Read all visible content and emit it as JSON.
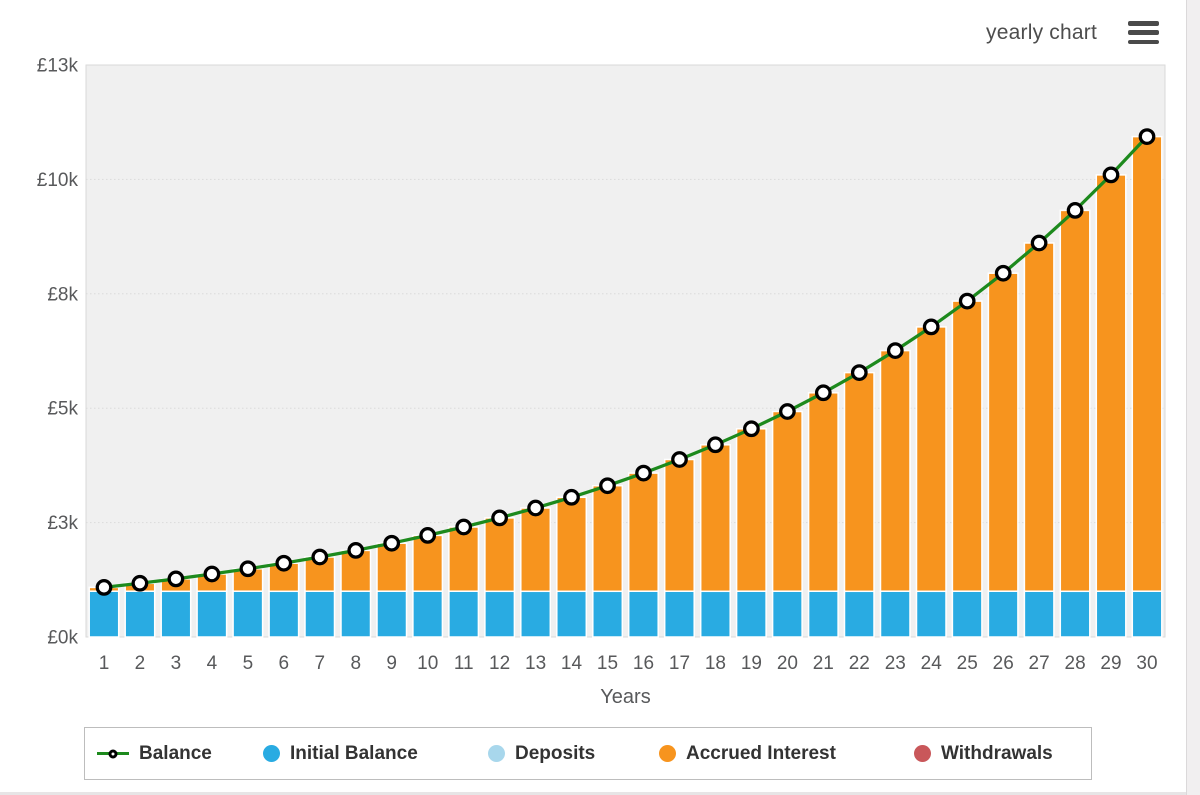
{
  "header": {
    "title": "yearly chart"
  },
  "colors": {
    "plot_bg": "#f0f0f0",
    "grid": "#dadada",
    "plot_border": "#d9d9d9",
    "axis_label": "#58595b",
    "bar_stroke": "#ffffff",
    "balance_line": "#1d8a1d",
    "marker_fill": "#ffffff",
    "marker_stroke": "#000000"
  },
  "chart_data": {
    "type": "bar",
    "subtype": "stacked-columns-with-line-overlay",
    "title": "yearly chart",
    "xlabel": "Years",
    "ylabel": "",
    "ylim": [
      0,
      12500
    ],
    "grid": true,
    "legend_position": "bottom",
    "categories": [
      1,
      2,
      3,
      4,
      5,
      6,
      7,
      8,
      9,
      10,
      11,
      12,
      13,
      14,
      15,
      16,
      17,
      18,
      19,
      20,
      21,
      22,
      23,
      24,
      25,
      26,
      27,
      28,
      29,
      30
    ],
    "y_ticks": [
      {
        "value": 0,
        "label": "£0k"
      },
      {
        "value": 2500,
        "label": "£3k"
      },
      {
        "value": 5000,
        "label": "£5k"
      },
      {
        "value": 7500,
        "label": "£8k"
      },
      {
        "value": 10000,
        "label": "£10k"
      },
      {
        "value": 12500,
        "label": "£13k"
      }
    ],
    "series": [
      {
        "name": "Balance",
        "type": "line",
        "color": "#1d8a1d",
        "marker": "white-circle-black-ring",
        "values": [
          1083.0,
          1172.89,
          1270.24,
          1375.67,
          1489.85,
          1613.5,
          1747.42,
          1892.46,
          2049.53,
          2219.64,
          2403.87,
          2603.39,
          2819.47,
          3053.48,
          3306.92,
          3581.39,
          3878.64,
          4200.57,
          4549.22,
          4926.8,
          5335.73,
          5778.58,
          6258.18,
          6777.59,
          7340.1,
          7949.3,
          8609.06,
          9323.58,
          10097.4,
          10935.45
        ]
      },
      {
        "name": "Initial Balance",
        "type": "column-stacked",
        "color": "#29abe2",
        "values": [
          1000,
          1000,
          1000,
          1000,
          1000,
          1000,
          1000,
          1000,
          1000,
          1000,
          1000,
          1000,
          1000,
          1000,
          1000,
          1000,
          1000,
          1000,
          1000,
          1000,
          1000,
          1000,
          1000,
          1000,
          1000,
          1000,
          1000,
          1000,
          1000,
          1000
        ]
      },
      {
        "name": "Deposits",
        "type": "column-stacked",
        "color": "#a8d7ec",
        "values": [
          0,
          0,
          0,
          0,
          0,
          0,
          0,
          0,
          0,
          0,
          0,
          0,
          0,
          0,
          0,
          0,
          0,
          0,
          0,
          0,
          0,
          0,
          0,
          0,
          0,
          0,
          0,
          0,
          0,
          0
        ]
      },
      {
        "name": "Accrued Interest",
        "type": "column-stacked",
        "color": "#f7941e",
        "values": [
          83.0,
          172.89,
          270.24,
          375.67,
          489.85,
          613.5,
          747.42,
          892.46,
          1049.53,
          1219.64,
          1403.87,
          1603.39,
          1819.47,
          2053.48,
          2306.92,
          2581.39,
          2878.64,
          3200.57,
          3549.22,
          3926.8,
          4335.73,
          4778.58,
          5258.18,
          5777.59,
          6340.1,
          6949.3,
          7609.06,
          8323.58,
          9097.4,
          9935.45
        ]
      },
      {
        "name": "Withdrawals",
        "type": "column-stacked",
        "color": "#c9575a",
        "values": [
          0,
          0,
          0,
          0,
          0,
          0,
          0,
          0,
          0,
          0,
          0,
          0,
          0,
          0,
          0,
          0,
          0,
          0,
          0,
          0,
          0,
          0,
          0,
          0,
          0,
          0,
          0,
          0,
          0,
          0
        ]
      }
    ]
  },
  "legend": {
    "items": [
      {
        "label": "Balance",
        "symbol": "line-marker",
        "color": "#1d8a1d"
      },
      {
        "label": "Initial Balance",
        "symbol": "circle",
        "color": "#29abe2"
      },
      {
        "label": "Deposits",
        "symbol": "circle",
        "color": "#a8d7ec"
      },
      {
        "label": "Accrued Interest",
        "symbol": "circle",
        "color": "#f7941e"
      },
      {
        "label": "Withdrawals",
        "symbol": "circle",
        "color": "#c9575a"
      }
    ]
  }
}
